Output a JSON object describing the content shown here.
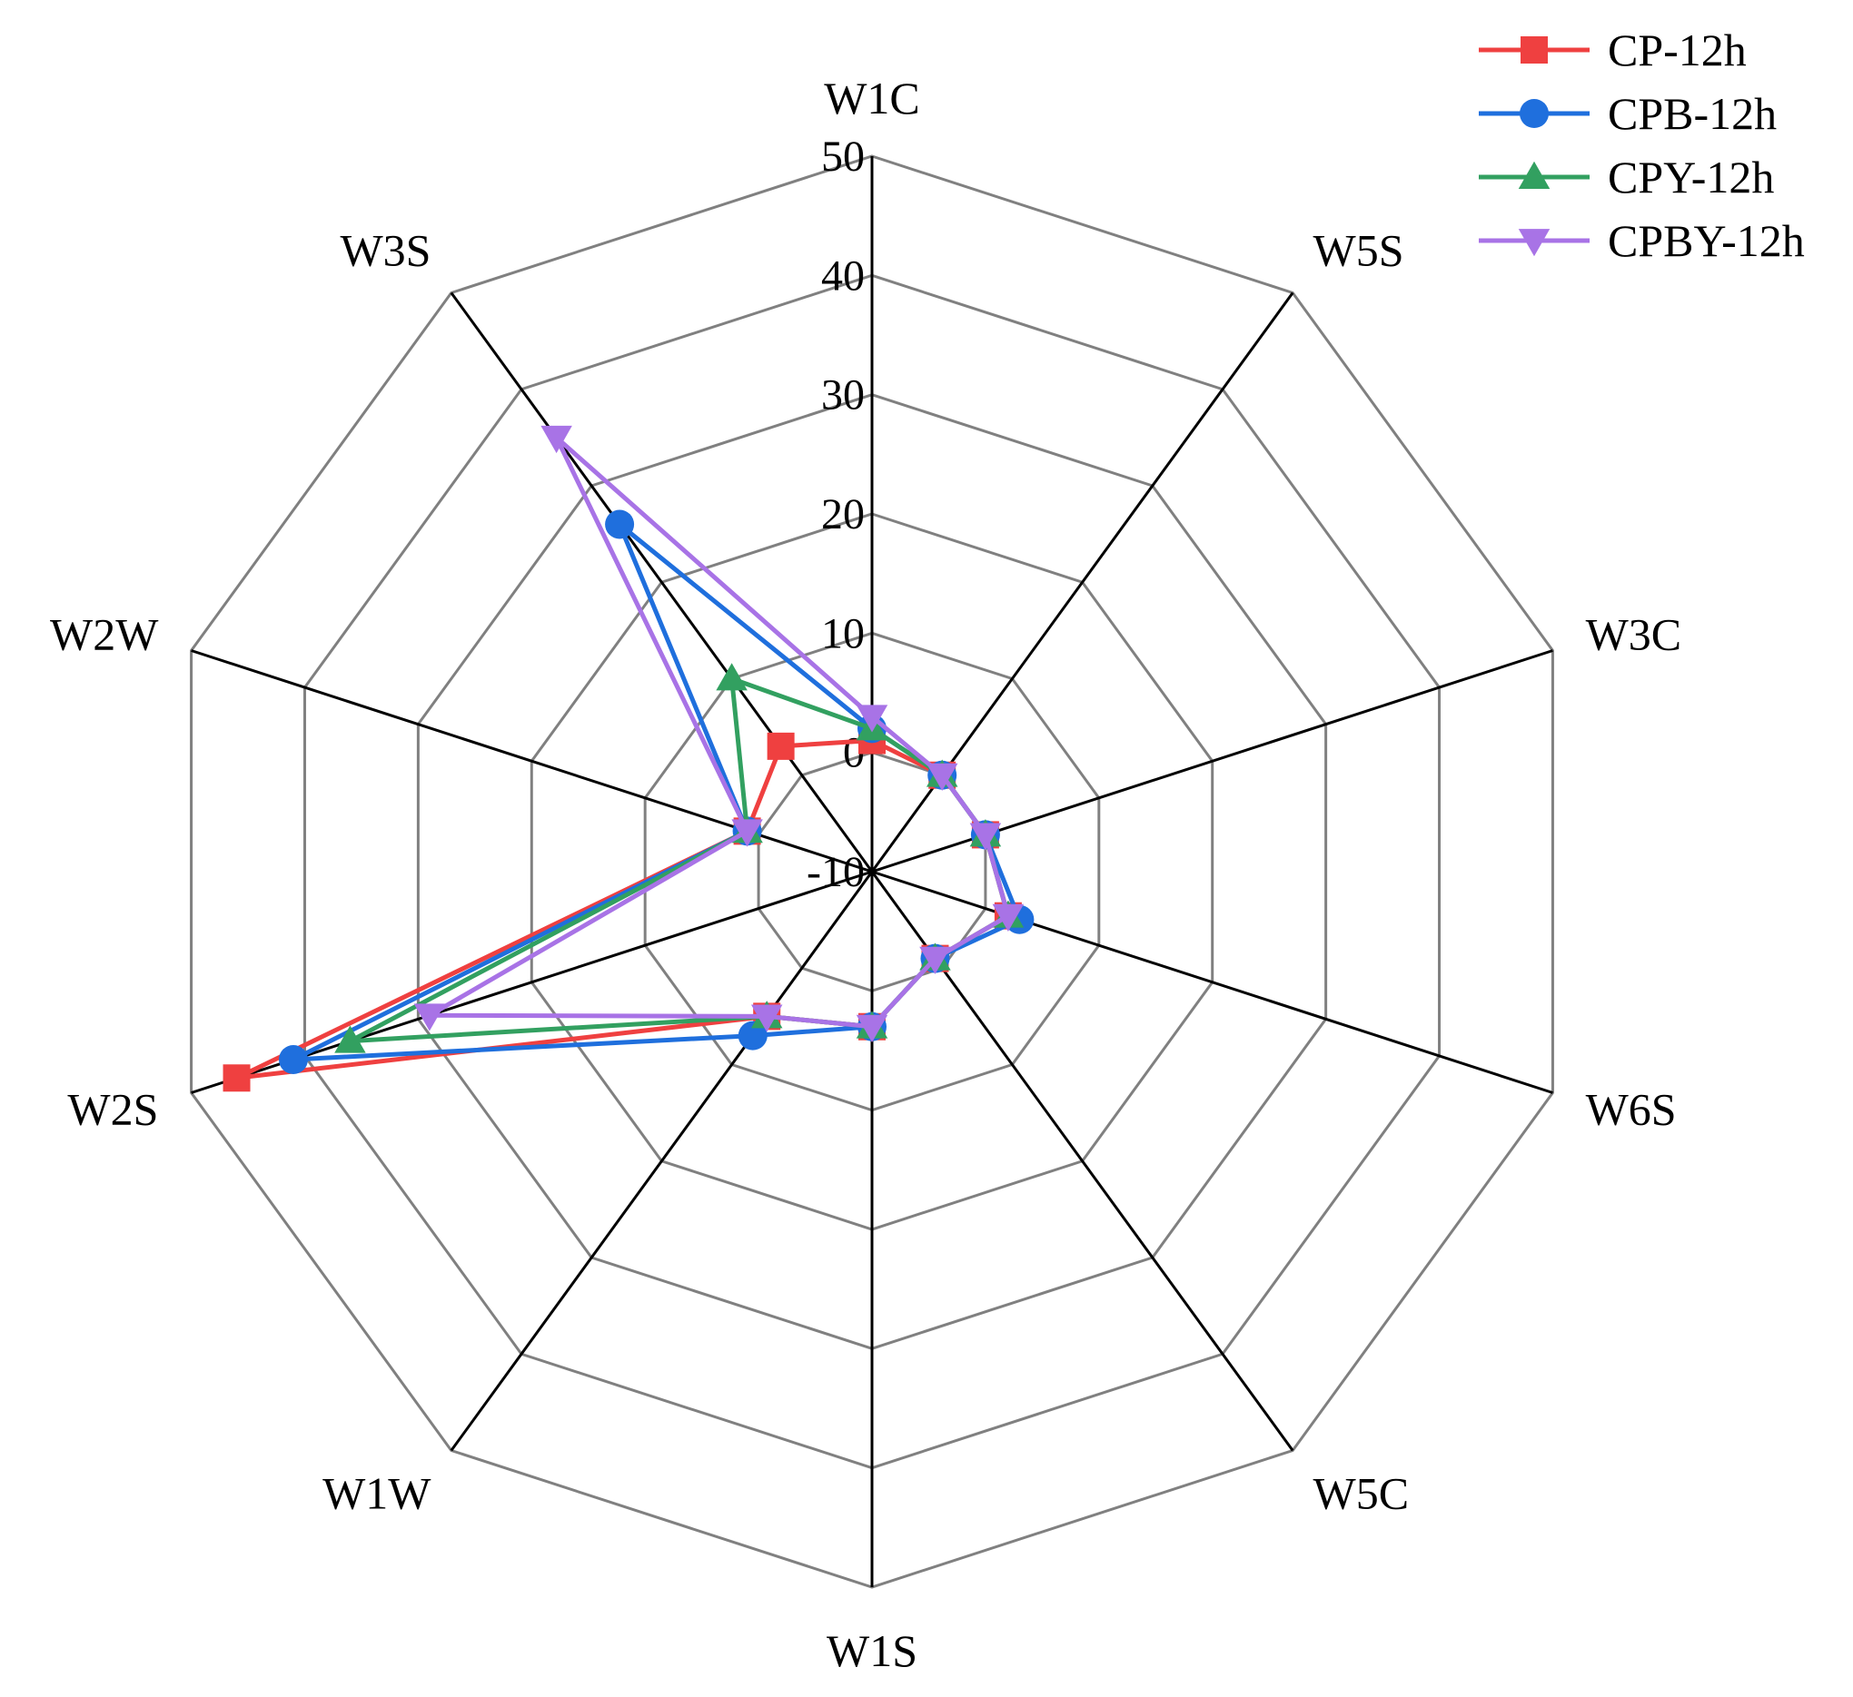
{
  "chart_data": {
    "type": "radar",
    "categories": [
      "W1C",
      "W5S",
      "W3C",
      "W6S",
      "W5C",
      "W1S",
      "W1W",
      "W2S",
      "W2W",
      "W3S"
    ],
    "r_ticks": [
      "-10",
      "0",
      "10",
      "20",
      "30",
      "40",
      "50"
    ],
    "rlim": [
      -10,
      50
    ],
    "grid": true,
    "legend_position": "top-right",
    "series": [
      {
        "name": "CP-12h",
        "color": "#ef4040",
        "marker": "square",
        "values": [
          1,
          0,
          0,
          2,
          -1,
          3,
          5,
          46,
          1,
          3
        ]
      },
      {
        "name": "CPB-12h",
        "color": "#1f6fdd",
        "marker": "circle",
        "values": [
          2,
          0,
          0,
          3,
          -1,
          3,
          7,
          41,
          1,
          26
        ]
      },
      {
        "name": "CPY-12h",
        "color": "#32a060",
        "marker": "triangle-up",
        "values": [
          2,
          0,
          0,
          2,
          -1,
          3,
          5,
          36,
          1,
          10
        ]
      },
      {
        "name": "CPBY-12h",
        "color": "#a873e6",
        "marker": "triangle-down",
        "values": [
          3,
          0,
          0,
          2,
          -1,
          3,
          5,
          29,
          1,
          35
        ]
      }
    ]
  }
}
